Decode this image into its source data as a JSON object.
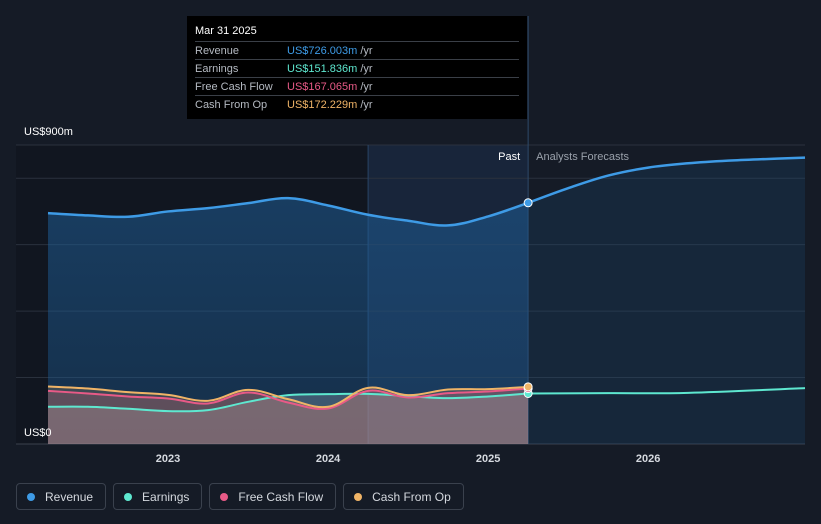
{
  "tooltip": {
    "date": "Mar 31 2025",
    "rows": [
      {
        "label": "Revenue",
        "value": "US$726.003m",
        "unit": "/yr",
        "color": "#3e9be6"
      },
      {
        "label": "Earnings",
        "value": "US$151.836m",
        "unit": "/yr",
        "color": "#5ee8d0"
      },
      {
        "label": "Free Cash Flow",
        "value": "US$167.065m",
        "unit": "/yr",
        "color": "#e85a87"
      },
      {
        "label": "Cash From Op",
        "value": "US$172.229m",
        "unit": "/yr",
        "color": "#f0b467"
      }
    ]
  },
  "legend": [
    {
      "label": "Revenue",
      "color": "#3e9be6"
    },
    {
      "label": "Earnings",
      "color": "#5ee8d0"
    },
    {
      "label": "Free Cash Flow",
      "color": "#e85a87"
    },
    {
      "label": "Cash From Op",
      "color": "#f0b467"
    }
  ],
  "chart_data": {
    "type": "line",
    "ylabel_top": "US$900m",
    "ylabel_bottom": "US$0",
    "ylim": [
      0,
      900
    ],
    "xlim": [
      2022.25,
      2026.98
    ],
    "x_ticks": [
      2023,
      2024,
      2025,
      2026
    ],
    "x_tick_labels": [
      "2023",
      "2024",
      "2025",
      "2026"
    ],
    "past_label": "Past",
    "forecast_label": "Analysts Forecasts",
    "divider_x": 2025.25,
    "highlight_start_x": 2024.25,
    "grid": true,
    "series": [
      {
        "name": "Revenue",
        "color": "#3e9be6",
        "fill": true,
        "past": [
          [
            2022.25,
            695
          ],
          [
            2022.5,
            688
          ],
          [
            2022.75,
            684
          ],
          [
            2023.0,
            700
          ],
          [
            2023.25,
            710
          ],
          [
            2023.5,
            725
          ],
          [
            2023.75,
            740
          ],
          [
            2024.0,
            718
          ],
          [
            2024.25,
            690
          ],
          [
            2024.5,
            672
          ],
          [
            2024.75,
            658
          ],
          [
            2025.0,
            685
          ],
          [
            2025.25,
            726
          ]
        ],
        "forecast": [
          [
            2025.25,
            726
          ],
          [
            2025.5,
            770
          ],
          [
            2025.75,
            808
          ],
          [
            2026.0,
            832
          ],
          [
            2026.25,
            845
          ],
          [
            2026.5,
            853
          ],
          [
            2026.75,
            858
          ],
          [
            2026.98,
            862
          ]
        ]
      },
      {
        "name": "Earnings",
        "color": "#5ee8d0",
        "fill": true,
        "past": [
          [
            2022.25,
            112
          ],
          [
            2022.5,
            112
          ],
          [
            2022.75,
            106
          ],
          [
            2023.0,
            99
          ],
          [
            2023.25,
            102
          ],
          [
            2023.5,
            127
          ],
          [
            2023.75,
            147
          ],
          [
            2024.0,
            150
          ],
          [
            2024.25,
            151
          ],
          [
            2024.5,
            144
          ],
          [
            2024.75,
            138
          ],
          [
            2025.0,
            143
          ],
          [
            2025.25,
            152
          ]
        ],
        "forecast": [
          [
            2025.25,
            152
          ],
          [
            2025.75,
            153
          ],
          [
            2026.25,
            154
          ],
          [
            2026.98,
            168
          ]
        ]
      },
      {
        "name": "Free Cash Flow",
        "color": "#e85a87",
        "fill": true,
        "past": [
          [
            2022.25,
            160
          ],
          [
            2022.5,
            152
          ],
          [
            2022.75,
            143
          ],
          [
            2023.0,
            137
          ],
          [
            2023.25,
            122
          ],
          [
            2023.5,
            155
          ],
          [
            2023.75,
            125
          ],
          [
            2024.0,
            107
          ],
          [
            2024.25,
            160
          ],
          [
            2024.5,
            140
          ],
          [
            2024.75,
            153
          ],
          [
            2025.0,
            158
          ],
          [
            2025.25,
            167
          ]
        ]
      },
      {
        "name": "Cash From Op",
        "color": "#f0b467",
        "fill": true,
        "past": [
          [
            2022.25,
            173
          ],
          [
            2022.5,
            167
          ],
          [
            2022.75,
            156
          ],
          [
            2023.0,
            148
          ],
          [
            2023.25,
            130
          ],
          [
            2023.5,
            163
          ],
          [
            2023.75,
            135
          ],
          [
            2024.0,
            112
          ],
          [
            2024.25,
            169
          ],
          [
            2024.5,
            147
          ],
          [
            2024.75,
            164
          ],
          [
            2025.0,
            165
          ],
          [
            2025.25,
            172
          ]
        ]
      }
    ]
  }
}
